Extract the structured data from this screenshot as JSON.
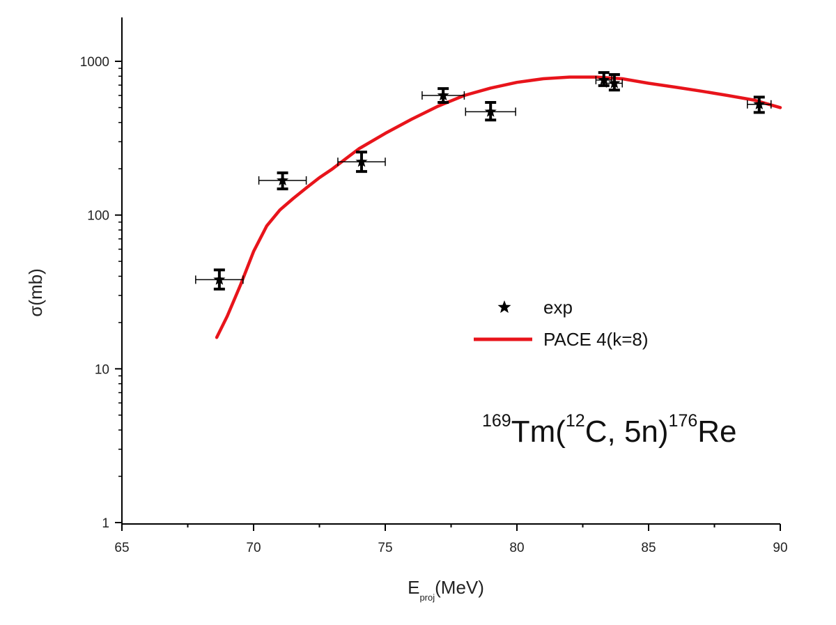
{
  "chart_data": {
    "type": "scatter",
    "xlabel": {
      "main": "E",
      "sub": "proj",
      "unit": "(MeV)"
    },
    "ylabel": "σ(mb)",
    "xlim": [
      65,
      90
    ],
    "ylim": [
      1,
      2000
    ],
    "yscale": "log",
    "xticks": [
      65,
      70,
      75,
      80,
      85,
      90
    ],
    "xtick_labels": [
      "65",
      "70",
      "75",
      "80",
      "85",
      "90"
    ],
    "yticks": [
      1,
      10,
      100,
      1000
    ],
    "ytick_labels": [
      "1",
      "10",
      "100",
      "1000"
    ],
    "grid": false,
    "legend_position": "center-right",
    "annotation": {
      "a1": "169",
      "s1": "Tm(",
      "a2": "12",
      "s2": "C, 5n)",
      "a3": "176",
      "s3": "Re"
    },
    "series": [
      {
        "name": "exp",
        "kind": "scatter",
        "marker": "star",
        "color": "#000000",
        "points": [
          {
            "x": 68.7,
            "y": 38,
            "xerr": 0.9,
            "yerr_lo": 5,
            "yerr_hi": 6
          },
          {
            "x": 71.1,
            "y": 168,
            "xerr": 0.9,
            "yerr_lo": 20,
            "yerr_hi": 20
          },
          {
            "x": 74.1,
            "y": 222,
            "xerr": 0.9,
            "yerr_lo": 30,
            "yerr_hi": 35
          },
          {
            "x": 77.2,
            "y": 600,
            "xerr": 0.8,
            "yerr_lo": 60,
            "yerr_hi": 65
          },
          {
            "x": 79.0,
            "y": 470,
            "xerr": 0.95,
            "yerr_lo": 55,
            "yerr_hi": 70
          },
          {
            "x": 83.3,
            "y": 755,
            "xerr": 0.3,
            "yerr_lo": 60,
            "yerr_hi": 90
          },
          {
            "x": 83.7,
            "y": 720,
            "xerr": 0.3,
            "yerr_lo": 70,
            "yerr_hi": 100
          },
          {
            "x": 89.2,
            "y": 525,
            "xerr": 0.45,
            "yerr_lo": 60,
            "yerr_hi": 60
          }
        ]
      },
      {
        "name": "PACE 4(k=8)",
        "kind": "line",
        "color": "#e8141b",
        "x": [
          68.6,
          69.0,
          69.5,
          70.0,
          70.5,
          71.0,
          71.5,
          72.0,
          72.5,
          73.0,
          74.0,
          75.0,
          76.0,
          77.0,
          78.0,
          79.0,
          80.0,
          81.0,
          82.0,
          83.0,
          84.0,
          85.0,
          86.0,
          87.0,
          88.0,
          89.0,
          90.0
        ],
        "y": [
          16,
          22,
          35,
          58,
          85,
          108,
          128,
          150,
          175,
          200,
          270,
          340,
          420,
          510,
          600,
          670,
          730,
          770,
          790,
          790,
          770,
          720,
          680,
          640,
          600,
          560,
          500
        ]
      }
    ]
  }
}
